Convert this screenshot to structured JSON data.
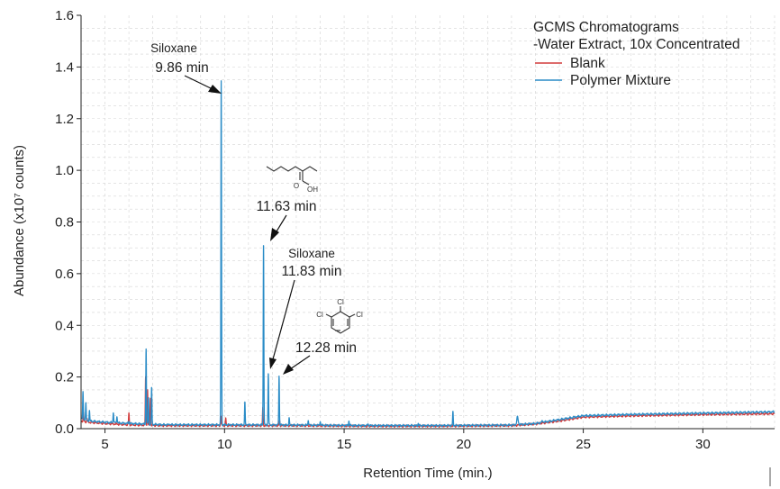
{
  "chart_data": {
    "type": "line",
    "title": "",
    "xlabel": "Retention Time (min.)",
    "ylabel": "Abundance (x10⁷ counts)",
    "xlim": [
      4,
      33
    ],
    "ylim": [
      0,
      1.6
    ],
    "x_ticks": [
      5,
      10,
      15,
      20,
      25,
      30
    ],
    "y_ticks": [
      0.0,
      0.2,
      0.4,
      0.6,
      0.8,
      1.0,
      1.2,
      1.4,
      1.6
    ],
    "y_tick_labels": [
      "0.0",
      "0.2",
      "0.4",
      "0.6",
      "0.8",
      "1.0",
      "1.2",
      "1.4",
      "1.6"
    ],
    "grid": "dashed-minor",
    "legend": {
      "placement": "top-right",
      "title_lines": [
        "GCMS Chromatograms",
        "-Water Extract, 10x Concentrated"
      ]
    },
    "series": [
      {
        "name": "Blank",
        "color": "#d23a3a",
        "baseline": [
          [
            4.0,
            0.03
          ],
          [
            4.3,
            0.025
          ],
          [
            5.0,
            0.02
          ],
          [
            6.0,
            0.015
          ],
          [
            7.5,
            0.012
          ],
          [
            10,
            0.012
          ],
          [
            13,
            0.012
          ],
          [
            16,
            0.01
          ],
          [
            19,
            0.01
          ],
          [
            22,
            0.012
          ],
          [
            23,
            0.018
          ],
          [
            24,
            0.03
          ],
          [
            25,
            0.045
          ],
          [
            27,
            0.05
          ],
          [
            30,
            0.055
          ],
          [
            33,
            0.058
          ]
        ],
        "peaks": [
          [
            4.1,
            0.06
          ],
          [
            4.25,
            0.04
          ],
          [
            6.0,
            0.06
          ],
          [
            6.7,
            0.2
          ],
          [
            6.78,
            0.15
          ],
          [
            6.9,
            0.12
          ],
          [
            9.85,
            0.05
          ],
          [
            10.05,
            0.04
          ],
          [
            11.6,
            0.08
          ],
          [
            12.3,
            0.03
          ]
        ]
      },
      {
        "name": "Polymer Mixture",
        "color": "#2a8cc7",
        "baseline": [
          [
            4.0,
            0.04
          ],
          [
            4.3,
            0.03
          ],
          [
            5.0,
            0.025
          ],
          [
            6.0,
            0.02
          ],
          [
            7.5,
            0.015
          ],
          [
            10,
            0.015
          ],
          [
            13,
            0.014
          ],
          [
            16,
            0.012
          ],
          [
            19,
            0.012
          ],
          [
            22,
            0.014
          ],
          [
            23,
            0.02
          ],
          [
            24,
            0.035
          ],
          [
            25,
            0.05
          ],
          [
            27,
            0.055
          ],
          [
            30,
            0.06
          ],
          [
            33,
            0.065
          ]
        ],
        "peaks": [
          [
            4.08,
            0.14
          ],
          [
            4.2,
            0.1
          ],
          [
            4.35,
            0.07
          ],
          [
            5.35,
            0.065
          ],
          [
            5.5,
            0.05
          ],
          [
            6.0,
            0.03
          ],
          [
            6.72,
            0.31
          ],
          [
            6.82,
            0.12
          ],
          [
            6.95,
            0.16
          ],
          [
            7.7,
            0.02
          ],
          [
            9.86,
            1.345
          ],
          [
            10.85,
            0.1
          ],
          [
            11.63,
            0.72
          ],
          [
            11.83,
            0.215
          ],
          [
            12.28,
            0.205
          ],
          [
            12.7,
            0.04
          ],
          [
            13.5,
            0.035
          ],
          [
            14.0,
            0.03
          ],
          [
            15.2,
            0.03
          ],
          [
            16.0,
            0.02
          ],
          [
            18.1,
            0.02
          ],
          [
            19.55,
            0.065
          ],
          [
            22.25,
            0.045
          ],
          [
            23.3,
            0.03
          ]
        ]
      }
    ],
    "annotations": [
      {
        "id": "siloxane-1",
        "lines": [
          "Siloxane",
          "9.86 min"
        ],
        "x": 9.86,
        "y": 1.345
      },
      {
        "id": "acid",
        "lines": [
          "11.63 min"
        ],
        "x": 11.63,
        "y": 0.72,
        "structure": "2-ethylhexanoic-acid",
        "structure_labels": [
          "O",
          "OH"
        ]
      },
      {
        "id": "siloxane-2",
        "lines": [
          "Siloxane",
          "11.83 min"
        ],
        "x": 11.83,
        "y": 0.215
      },
      {
        "id": "trichlorobenzene",
        "lines": [
          "12.28 min"
        ],
        "x": 12.28,
        "y": 0.205,
        "structure": "1,2,3-trichlorobenzene",
        "structure_labels": [
          "Cl",
          "Cl",
          "Cl"
        ]
      }
    ]
  }
}
